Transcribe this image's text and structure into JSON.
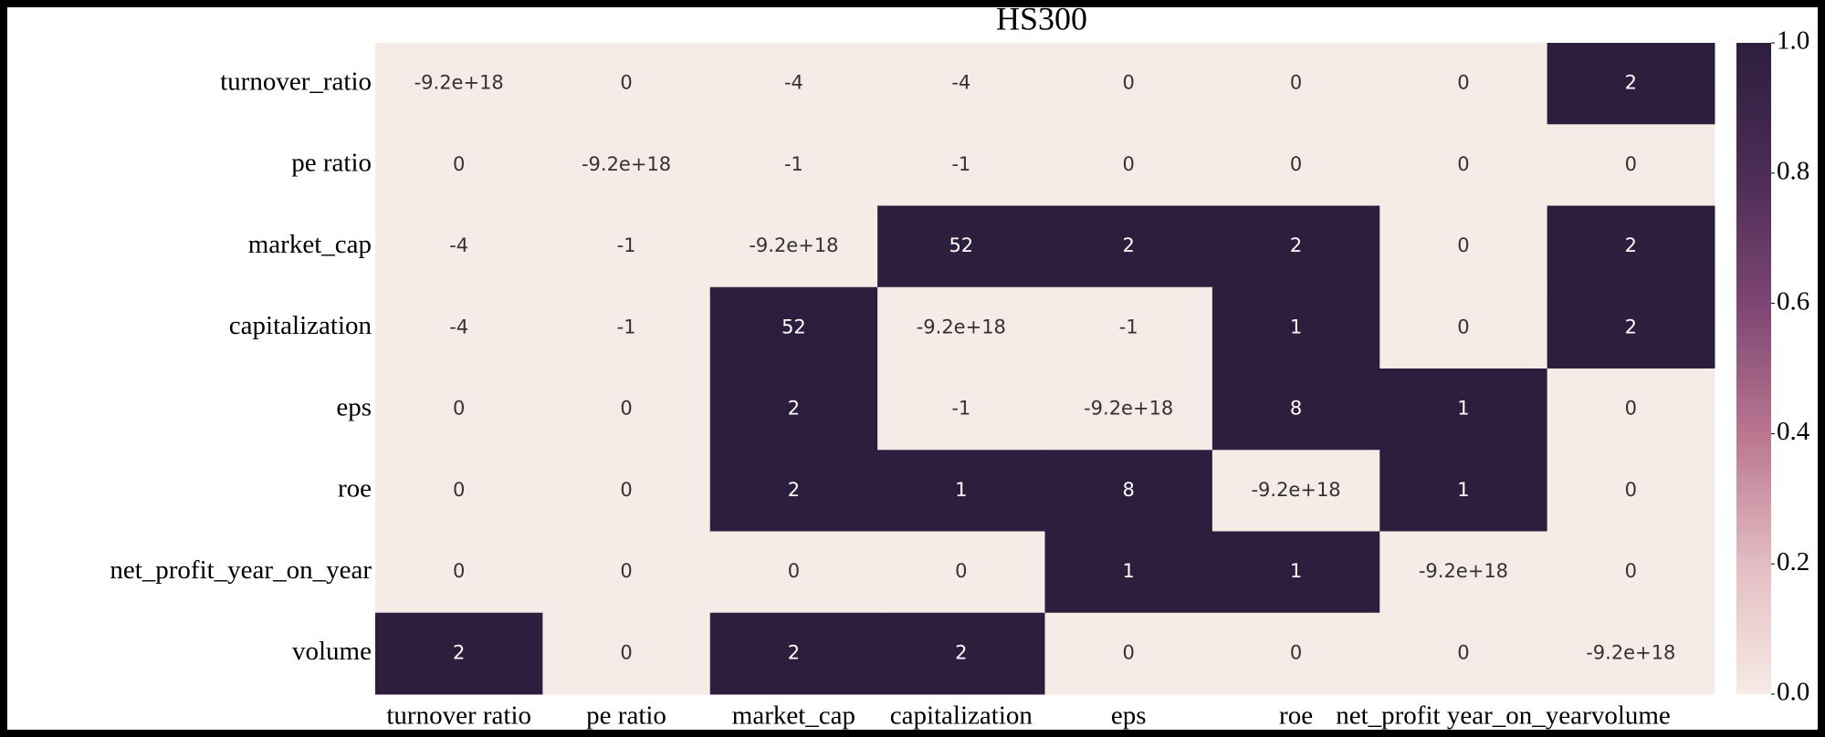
{
  "chart_data": {
    "type": "heatmap",
    "title": "HS300",
    "x_categories": [
      "turnover ratio",
      "pe ratio",
      "market_cap",
      "capitalization",
      "eps",
      "roe",
      "net_profit year_on_year",
      "volume"
    ],
    "y_categories": [
      "turnover_ratio",
      "pe ratio",
      "market_cap",
      "capitalization",
      "eps",
      "roe",
      "net_profit_year_on_year",
      "volume"
    ],
    "values": [
      [
        -9.2e+18,
        0,
        -4,
        -4,
        0,
        0,
        0,
        2
      ],
      [
        0,
        -9.2e+18,
        -1,
        -1,
        0,
        0,
        0,
        0
      ],
      [
        -4,
        -1,
        -9.2e+18,
        52,
        2,
        2,
        0,
        2
      ],
      [
        -4,
        -1,
        52,
        -9.2e+18,
        -1,
        1,
        0,
        2
      ],
      [
        0,
        0,
        2,
        -1,
        -9.2e+18,
        8,
        1,
        0
      ],
      [
        0,
        0,
        2,
        1,
        8,
        -9.2e+18,
        1,
        0
      ],
      [
        0,
        0,
        0,
        0,
        1,
        1,
        -9.2e+18,
        0
      ],
      [
        2,
        0,
        2,
        2,
        0,
        0,
        0,
        -9.2e+18
      ]
    ],
    "value_labels": [
      [
        "-9.2e+18",
        "0",
        "-4",
        "-4",
        "0",
        "0",
        "0",
        "2"
      ],
      [
        "0",
        "-9.2e+18",
        "-1",
        "-1",
        "0",
        "0",
        "0",
        "0"
      ],
      [
        "-4",
        "-1",
        "-9.2e+18",
        "52",
        "2",
        "2",
        "0",
        "2"
      ],
      [
        "-4",
        "-1",
        "52",
        "-9.2e+18",
        "-1",
        "1",
        "0",
        "2"
      ],
      [
        "0",
        "0",
        "2",
        "-1",
        "-9.2e+18",
        "8",
        "1",
        "0"
      ],
      [
        "0",
        "0",
        "2",
        "1",
        "8",
        "-9.2e+18",
        "1",
        "0"
      ],
      [
        "0",
        "0",
        "0",
        "0",
        "1",
        "1",
        "-9.2e+18",
        "0"
      ],
      [
        "2",
        "0",
        "2",
        "2",
        "0",
        "0",
        "0",
        "-9.2e+18"
      ]
    ],
    "clim": [
      0,
      1
    ],
    "cticks": [
      {
        "value": 0,
        "label": "0.0"
      },
      {
        "value": 0.2,
        "label": "0.2"
      },
      {
        "value": 0.4,
        "label": "0.4"
      },
      {
        "value": 0.6,
        "label": "0.6"
      },
      {
        "value": 0.8,
        "label": "0.8"
      },
      {
        "value": 1,
        "label": "1.0"
      }
    ],
    "colorscale": [
      "#f6ebe6",
      "#e3bcc2",
      "#b9768f",
      "#7c4572",
      "#4b2c55",
      "#2d1e3e"
    ]
  }
}
